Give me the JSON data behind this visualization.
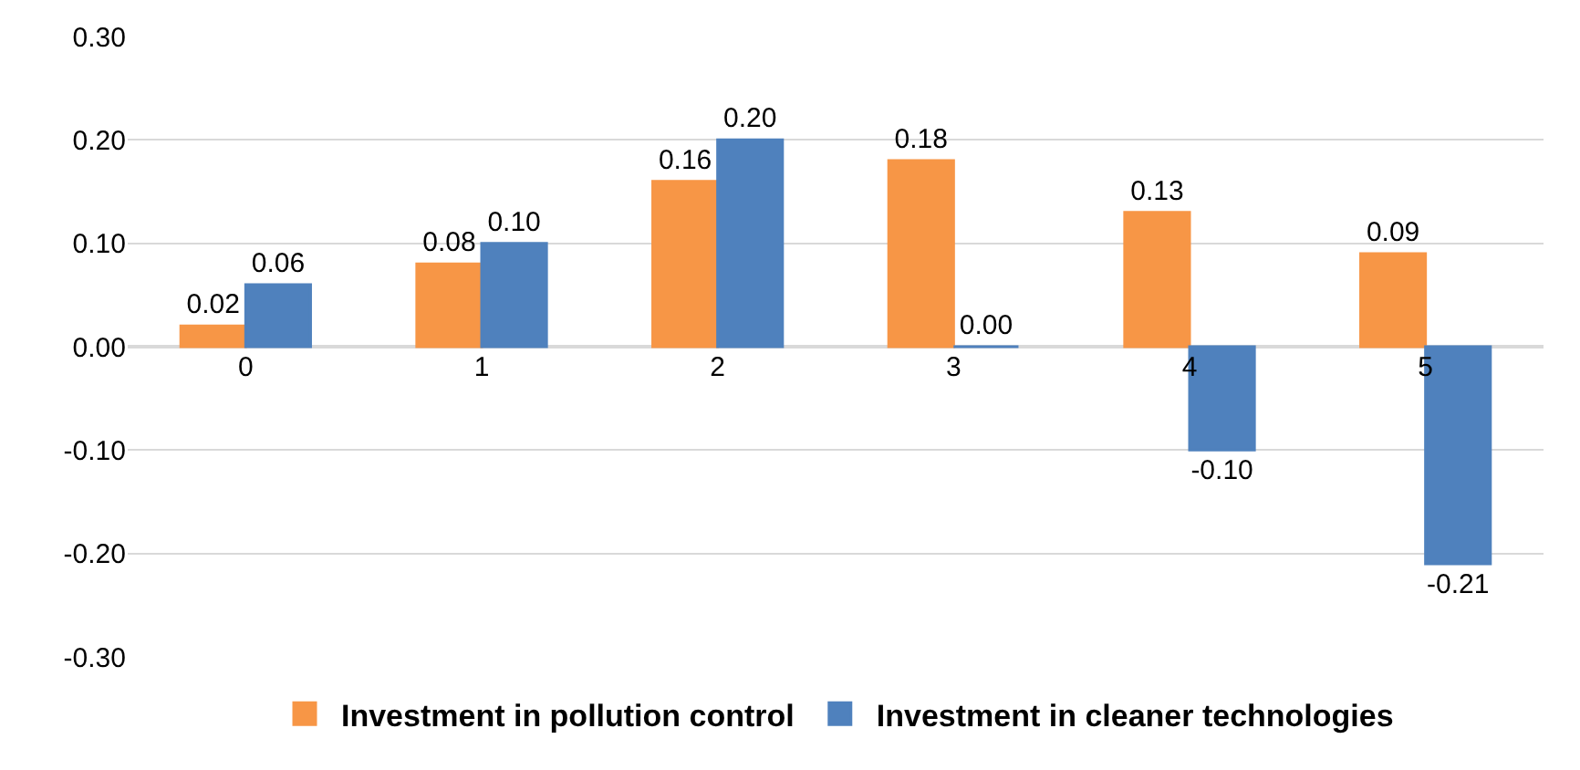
{
  "chart_data": {
    "type": "bar",
    "categories": [
      "0",
      "1",
      "2",
      "3",
      "4",
      "5"
    ],
    "series": [
      {
        "name": "Investment in pollution control",
        "color": "#f79646",
        "values": [
          0.02,
          0.08,
          0.16,
          0.18,
          0.13,
          0.09
        ],
        "value_labels": [
          "0.02",
          "0.08",
          "0.16",
          "0.18",
          "0.13",
          "0.09"
        ]
      },
      {
        "name": "Investment in cleaner technologies",
        "color": "#4f81bd",
        "values": [
          0.06,
          0.1,
          0.2,
          0.0,
          -0.1,
          -0.21
        ],
        "value_labels": [
          "0.06",
          "0.10",
          "0.20",
          "0.00",
          "-0.10",
          "-0.21"
        ]
      }
    ],
    "ylim": [
      -0.3,
      0.3
    ],
    "yticks": [
      {
        "value": -0.3,
        "label": "-0.30"
      },
      {
        "value": -0.2,
        "label": "-0.20"
      },
      {
        "value": -0.1,
        "label": "-0.10"
      },
      {
        "value": 0,
        "label": "0.00"
      },
      {
        "value": 0.1,
        "label": "0.10"
      },
      {
        "value": 0.2,
        "label": "0.20"
      },
      {
        "value": 0.3,
        "label": "0.30"
      }
    ],
    "grid": "y",
    "legend": "bottom"
  }
}
